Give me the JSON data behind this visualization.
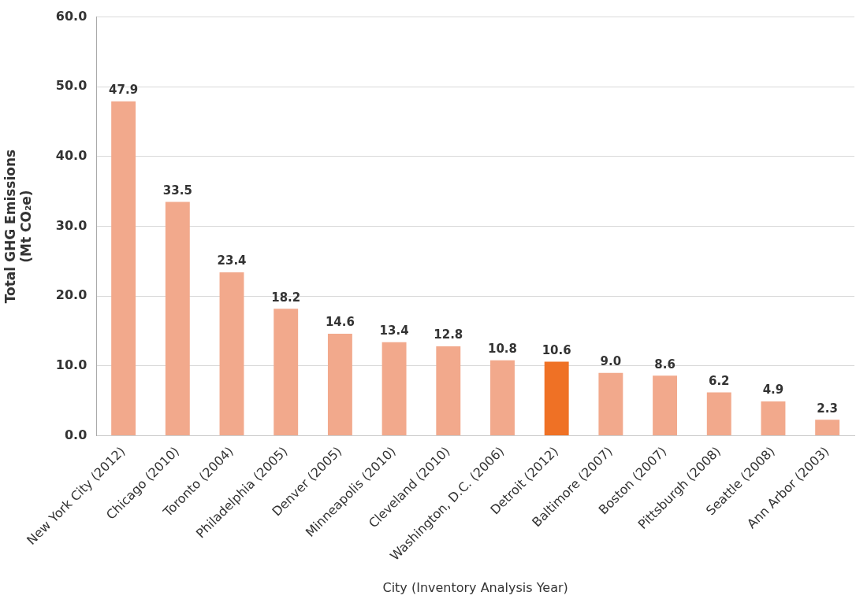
{
  "chart_data": {
    "type": "bar",
    "xlabel": "City (Inventory Analysis Year)",
    "ylabel": "Total GHG Emissions\n(Mt CO₂e)",
    "categories": [
      "New York City (2012)",
      "Chicago (2010)",
      "Toronto (2004)",
      "Philadelphia (2005)",
      "Denver (2005)",
      "Minneapolis (2010)",
      "Cleveland (2010)",
      "Washington, D.C. (2006)",
      "Detroit (2012)",
      "Baltimore (2007)",
      "Boston (2007)",
      "Pittsburgh (2008)",
      "Seattle (2008)",
      "Ann Arbor (2003)"
    ],
    "values": [
      47.9,
      33.5,
      23.4,
      18.2,
      14.6,
      13.4,
      12.8,
      10.8,
      10.6,
      9.0,
      8.6,
      6.2,
      4.9,
      2.3
    ],
    "value_labels": [
      "47.9",
      "33.5",
      "23.4",
      "18.2",
      "14.6",
      "13.4",
      "12.8",
      "10.8",
      "10.6",
      "9.0",
      "8.6",
      "6.2",
      "4.9",
      "2.3"
    ],
    "colors": [
      "#f2a98c",
      "#f2a98c",
      "#f2a98c",
      "#f2a98c",
      "#f2a98c",
      "#f2a98c",
      "#f2a98c",
      "#f2a98c",
      "#ef7125",
      "#f2a98c",
      "#f2a98c",
      "#f2a98c",
      "#f2a98c",
      "#f2a98c"
    ],
    "ylim": [
      0,
      60
    ],
    "yticks": [
      {
        "value": 0,
        "label": "0.0"
      },
      {
        "value": 10,
        "label": "10.0"
      },
      {
        "value": 20,
        "label": "20.0"
      },
      {
        "value": 30,
        "label": "30.0"
      },
      {
        "value": 40,
        "label": "40.0"
      },
      {
        "value": 50,
        "label": "50.0"
      },
      {
        "value": 60,
        "label": "60.0"
      }
    ],
    "grid": "y",
    "legend": false
  }
}
